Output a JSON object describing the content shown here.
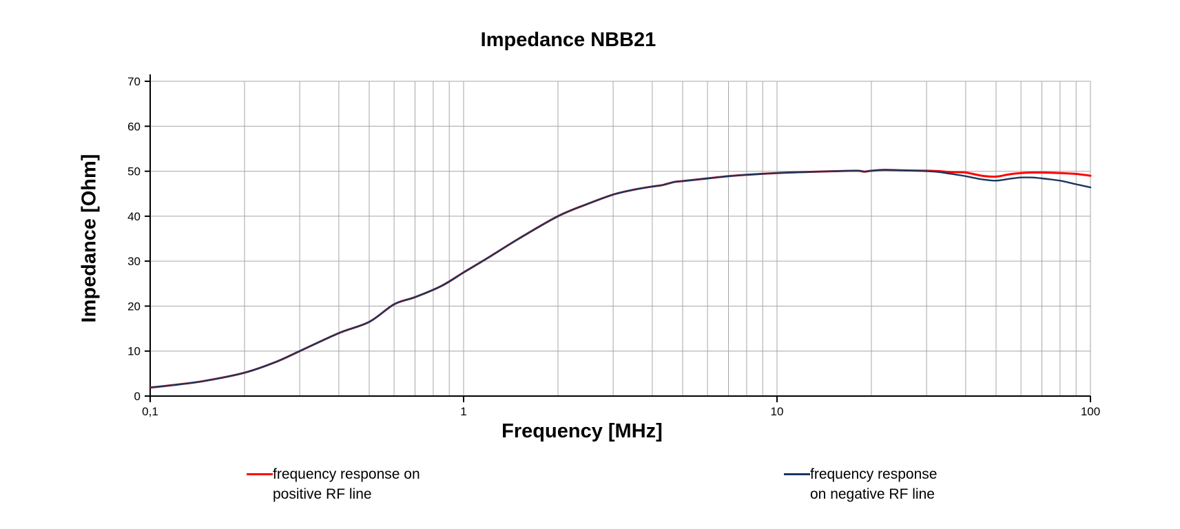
{
  "title": "Impedance NBB21",
  "chart_data": {
    "type": "line",
    "title": "Impedance NBB21",
    "xlabel": "Frequency [MHz]",
    "ylabel": "Impedance [Ohm]",
    "x_scale": "log",
    "xlim": [
      0.1,
      100
    ],
    "ylim": [
      0,
      70
    ],
    "grid": true,
    "legend_position": "bottom",
    "y_ticks": [
      0,
      10,
      20,
      30,
      40,
      50,
      60,
      70
    ],
    "x_major_ticks": [
      0.1,
      1,
      10,
      100
    ],
    "x_major_tick_labels": [
      "0,1",
      "1",
      "10",
      "100"
    ],
    "x": [
      0.1,
      0.12,
      0.15,
      0.2,
      0.25,
      0.3,
      0.4,
      0.5,
      0.6,
      0.7,
      0.85,
      1.0,
      1.2,
      1.5,
      2.0,
      2.5,
      3.0,
      3.5,
      4.0,
      4.3,
      4.7,
      5.0,
      6.0,
      7.0,
      8.0,
      10.0,
      12.0,
      15.0,
      18.0,
      19.0,
      20.0,
      22.0,
      25.0,
      30.0,
      33.0,
      36.0,
      40.0,
      45.0,
      50.0,
      55.0,
      60.0,
      65.0,
      70.0,
      80.0,
      90.0,
      100.0
    ],
    "series": [
      {
        "name": "frequency response on positive RF line",
        "color": "#FF0000",
        "values": [
          1.9,
          2.5,
          3.4,
          5.2,
          7.5,
          10.0,
          14.0,
          16.5,
          20.4,
          22.0,
          24.5,
          27.5,
          30.8,
          35.0,
          40.0,
          42.8,
          44.8,
          45.9,
          46.6,
          46.9,
          47.6,
          47.8,
          48.4,
          48.9,
          49.2,
          49.6,
          49.8,
          50.0,
          50.1,
          49.9,
          50.1,
          50.3,
          50.2,
          50.1,
          50.0,
          49.8,
          49.7,
          49.0,
          48.8,
          49.3,
          49.6,
          49.7,
          49.7,
          49.6,
          49.4,
          49.0
        ]
      },
      {
        "name": "frequency response on negative RF line",
        "color": "#17375E",
        "values": [
          1.9,
          2.5,
          3.4,
          5.2,
          7.5,
          10.0,
          14.0,
          16.5,
          20.4,
          22.0,
          24.5,
          27.5,
          30.8,
          35.0,
          40.0,
          42.8,
          44.8,
          45.9,
          46.6,
          46.9,
          47.6,
          47.8,
          48.4,
          48.9,
          49.2,
          49.6,
          49.8,
          50.0,
          50.1,
          49.9,
          50.1,
          50.3,
          50.2,
          50.0,
          49.8,
          49.4,
          48.9,
          48.2,
          47.9,
          48.3,
          48.6,
          48.6,
          48.4,
          47.9,
          47.1,
          46.4
        ]
      }
    ]
  },
  "legend": {
    "entries": [
      {
        "line1": "frequency response on",
        "line2": "positive RF line",
        "color": "#FF0000"
      },
      {
        "line1": "frequency response",
        "line2": "on negative RF line",
        "color": "#17375E"
      }
    ]
  },
  "colors": {
    "grid": "#A6A6A6",
    "axis": "#000000",
    "background": "#FFFFFF",
    "positive_line": "#FF0000",
    "negative_line": "#17375E"
  }
}
